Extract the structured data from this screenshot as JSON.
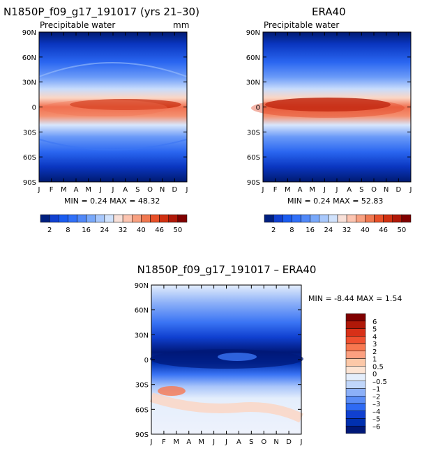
{
  "panels": [
    {
      "title": "N1850P_f09_g17_191017 (yrs 21–30)",
      "subtitle": "Precipitable water",
      "units": "mm",
      "min_max_text": "MIN =   0.24 MAX =  48.32"
    },
    {
      "title": "ERA40",
      "subtitle": "Precipitable water",
      "units": "",
      "min_max_text": "MIN =   0.24 MAX =  52.83"
    },
    {
      "title": "N1850P_f09_g17_191017 – ERA40",
      "subtitle": "",
      "units": "",
      "min_max_text": "MIN =   -8.44 MAX =   1.54"
    }
  ],
  "chart_data": [
    {
      "type": "heatmap",
      "title": "N1850P_f09_g17_191017 (yrs 21–30)",
      "subtitle": "Precipitable water",
      "units": "mm",
      "x_ticks": [
        "J",
        "F",
        "M",
        "A",
        "M",
        "J",
        "J",
        "A",
        "S",
        "O",
        "N",
        "D",
        "J"
      ],
      "y_ticks": [
        "90N",
        "60N",
        "30N",
        "0",
        "30S",
        "60S",
        "90S"
      ],
      "min": 0.24,
      "max": 48.32,
      "colorbar_levels": [
        2,
        5,
        8,
        12,
        16,
        20,
        24,
        28,
        32,
        36,
        40,
        43,
        46,
        48,
        50
      ],
      "colorbar_labels": [
        "2",
        "8",
        "16",
        "24",
        "32",
        "40",
        "46",
        "50"
      ],
      "colors": [
        "#002080",
        "#1040d0",
        "#1a5cf0",
        "#3070f8",
        "#5088f8",
        "#78a8fa",
        "#a8c8fc",
        "#d0e2fc",
        "#f8e0d8",
        "#fcc4b0",
        "#f8a080",
        "#f07850",
        "#e85028",
        "#d03010",
        "#b01808",
        "#800000"
      ]
    },
    {
      "type": "heatmap",
      "title": "ERA40",
      "subtitle": "Precipitable water",
      "x_ticks": [
        "J",
        "F",
        "M",
        "A",
        "M",
        "J",
        "J",
        "A",
        "S",
        "O",
        "N",
        "D",
        "J"
      ],
      "y_ticks": [
        "90N",
        "60N",
        "30N",
        "0",
        "30S",
        "60S",
        "90S"
      ],
      "min": 0.24,
      "max": 52.83,
      "colorbar_levels": [
        2,
        5,
        8,
        12,
        16,
        20,
        24,
        28,
        32,
        36,
        40,
        43,
        46,
        48,
        50
      ],
      "colorbar_labels": [
        "2",
        "8",
        "16",
        "24",
        "32",
        "40",
        "46",
        "50"
      ],
      "colors": [
        "#002080",
        "#1040d0",
        "#1a5cf0",
        "#3070f8",
        "#5088f8",
        "#78a8fa",
        "#a8c8fc",
        "#d0e2fc",
        "#f8e0d8",
        "#fcc4b0",
        "#f8a080",
        "#f07850",
        "#e85028",
        "#d03010",
        "#b01808",
        "#800000"
      ]
    },
    {
      "type": "heatmap",
      "title": "N1850P_f09_g17_191017 – ERA40",
      "x_ticks": [
        "J",
        "F",
        "M",
        "A",
        "M",
        "J",
        "J",
        "A",
        "S",
        "O",
        "N",
        "D",
        "J"
      ],
      "y_ticks": [
        "90N",
        "60N",
        "30N",
        "0",
        "30S",
        "60S",
        "90S"
      ],
      "min": -8.44,
      "max": 1.54,
      "colorbar_labels": [
        "6",
        "5",
        "4",
        "3",
        "2",
        "1",
        "0.5",
        "0",
        "–0.5",
        "–1",
        "–2",
        "–3",
        "–4",
        "–5",
        "–6"
      ],
      "colors": [
        "#800000",
        "#b01808",
        "#d83018",
        "#f05030",
        "#f87850",
        "#fca080",
        "#fcc8a8",
        "#fce4d4",
        "#e4eefc",
        "#c0d6fa",
        "#8cb0f8",
        "#5a8cf6",
        "#2e6af4",
        "#1040d0",
        "#0030b0",
        "#001878"
      ]
    }
  ]
}
